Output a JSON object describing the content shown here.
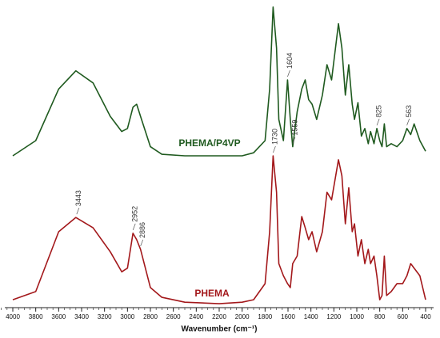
{
  "chart_data": {
    "type": "line",
    "x_label": "Wavenumber (cm⁻¹)",
    "xlim": [
      4000,
      400
    ],
    "ylim": [
      0,
      100
    ],
    "xticks": [
      4000,
      3800,
      3600,
      3400,
      3200,
      3000,
      2800,
      2600,
      2400,
      2200,
      2000,
      1800,
      1600,
      1400,
      1200,
      1000,
      800,
      600,
      400
    ],
    "x": [
      4000,
      3800,
      3600,
      3450,
      3300,
      3150,
      3050,
      3000,
      2952,
      2920,
      2886,
      2800,
      2700,
      2500,
      2200,
      2000,
      1900,
      1800,
      1760,
      1730,
      1700,
      1680,
      1640,
      1604,
      1580,
      1559,
      1520,
      1480,
      1450,
      1420,
      1390,
      1350,
      1300,
      1260,
      1220,
      1160,
      1130,
      1100,
      1070,
      1040,
      1020,
      990,
      960,
      930,
      900,
      880,
      850,
      825,
      800,
      780,
      760,
      740,
      700,
      650,
      600,
      563,
      530,
      500,
      450,
      400
    ],
    "series": [
      {
        "name": "PHEMA/P4VP",
        "color": "#1f5a1f",
        "values": [
          50,
          55,
          72,
          78,
          74,
          63,
          58,
          59,
          66,
          67,
          63,
          53,
          50.5,
          50,
          50,
          50,
          51,
          55,
          72,
          99,
          85.5,
          62,
          55,
          75,
          62,
          53,
          64.5,
          72,
          75,
          68.5,
          67,
          62,
          70,
          80,
          75,
          93.5,
          85.5,
          70,
          80,
          67,
          62,
          67.5,
          56.5,
          59,
          54,
          58,
          54,
          59,
          55,
          53,
          60.5,
          53,
          54,
          53,
          55,
          59,
          57,
          60.5,
          55,
          51.5
        ]
      },
      {
        "name": "PHEMA",
        "color": "#a3181b",
        "values": [
          2.6,
          5.3,
          25,
          29.7,
          26.3,
          18.4,
          11.8,
          13,
          24.5,
          22.4,
          19.2,
          6.6,
          3.4,
          1.8,
          1.3,
          1.8,
          2.6,
          7.9,
          25,
          50,
          38,
          14.5,
          10.5,
          7.9,
          6.6,
          14.5,
          17,
          30,
          26.3,
          22.4,
          25,
          18.4,
          25,
          38,
          35.5,
          48.7,
          43.4,
          27.6,
          39.5,
          25,
          27.6,
          17,
          22.4,
          14.5,
          19.2,
          14.5,
          17,
          10.5,
          2.6,
          4,
          17,
          4,
          5.3,
          7.9,
          7.9,
          10.5,
          14.5,
          13,
          10.5,
          2.6
        ]
      }
    ],
    "annotations": [
      {
        "text": "1604",
        "x": 1604,
        "series": 0
      },
      {
        "text": "1559",
        "x": 1559,
        "series": 0
      },
      {
        "text": "825",
        "x": 825,
        "series": 0
      },
      {
        "text": "563",
        "x": 563,
        "series": 0
      },
      {
        "text": "1730",
        "x": 1730,
        "series": 1
      },
      {
        "text": "3443",
        "x": 3443,
        "series": 1
      },
      {
        "text": "2952",
        "x": 2952,
        "series": 1
      },
      {
        "text": "2886",
        "x": 2886,
        "series": 1
      }
    ]
  }
}
